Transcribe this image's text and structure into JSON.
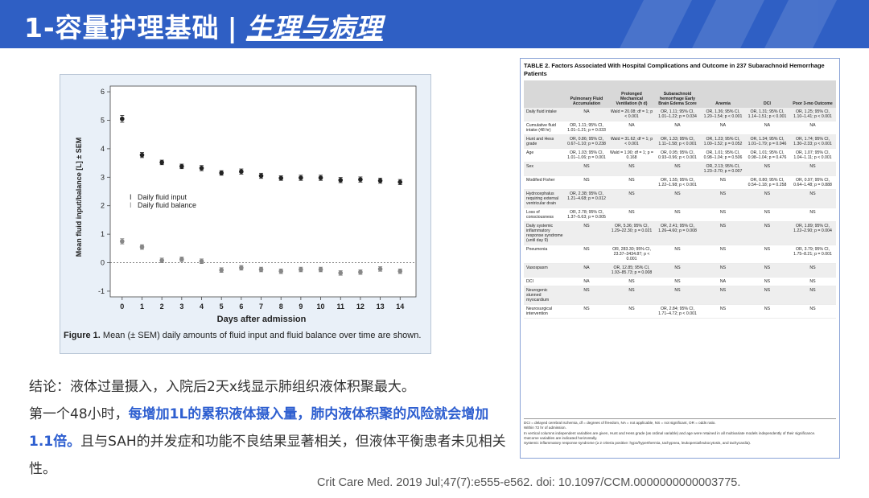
{
  "header": {
    "title_main": "1-容量护理基础",
    "separator": "|",
    "title_sub": "生理与病理",
    "bg_color": "#2f5fc4"
  },
  "figure1": {
    "ylabel": "Mean fluid input/balance [L] ± SEM",
    "xlabel": "Days after admission",
    "legend_input": "Daily fluid input",
    "legend_balance": "Daily fluid balance",
    "caption_label": "Figure 1.",
    "caption_text": " Mean (± SEM) daily amounts of fluid input and fluid balance over time are shown."
  },
  "chart_data": {
    "type": "scatter",
    "x": [
      0,
      1,
      2,
      3,
      4,
      5,
      6,
      7,
      8,
      9,
      10,
      11,
      12,
      13,
      14
    ],
    "series": [
      {
        "name": "Daily fluid input",
        "values": [
          5.05,
          3.78,
          3.52,
          3.38,
          3.32,
          3.15,
          3.2,
          3.05,
          2.97,
          2.98,
          2.98,
          2.9,
          2.92,
          2.88,
          2.83
        ],
        "errors": [
          0.12,
          0.09,
          0.08,
          0.08,
          0.09,
          0.08,
          0.09,
          0.09,
          0.08,
          0.09,
          0.09,
          0.09,
          0.09,
          0.09,
          0.09
        ]
      },
      {
        "name": "Daily fluid balance",
        "values": [
          0.75,
          0.55,
          0.08,
          0.12,
          0.05,
          -0.26,
          -0.18,
          -0.24,
          -0.3,
          -0.24,
          -0.24,
          -0.36,
          -0.33,
          -0.22,
          -0.3
        ],
        "errors": [
          0.09,
          0.08,
          0.08,
          0.08,
          0.08,
          0.08,
          0.08,
          0.08,
          0.08,
          0.08,
          0.08,
          0.08,
          0.08,
          0.08,
          0.08
        ]
      }
    ],
    "x_ticks": [
      "0",
      "1",
      "2",
      "3",
      "4",
      "5",
      "6",
      "7",
      "8",
      "9",
      "10",
      "11",
      "12",
      "13",
      "14"
    ],
    "y_ticks": [
      "-1",
      "0",
      "1",
      "2",
      "3",
      "4",
      "5",
      "6"
    ],
    "xlim": [
      -0.6,
      14.8
    ],
    "ylim": [
      -1.2,
      6.2
    ],
    "xlabel": "Days after admission",
    "ylabel": "Mean fluid input/balance [L] ± SEM",
    "grid": false,
    "reference_line_y": 0,
    "legend_position": "center"
  },
  "table2": {
    "title": "TABLE 2. Factors Associated With Hospital Complications and Outcome in 237 Subarachnoid Hemorrhage Patients",
    "columns": [
      "",
      "Pulmonary Fluid Accumulation",
      "Prolonged Mechanical Ventilation (h d)",
      "Subarachnoid hemorrhage Early Brain Edema Score",
      "Anemia",
      "DCI",
      "Poor 3-mo Outcome"
    ],
    "rows": [
      [
        "Daily fluid intake",
        "NA",
        "Wald = 20.08; df = 1; p < 0.001",
        "OR, 1.11; 95% CI, 1.01–1.22; p = 0.034",
        "OR, 1.36; 95% CI, 1.20–1.54; p < 0.001",
        "OR, 1.31; 95% CI, 1.14–1.51; p < 0.001",
        "OR, 1.25; 95% CI, 1.10–1.41; p < 0.001"
      ],
      [
        "Cumulative fluid intake (48 hr)",
        "OR, 1.11; 95% CI, 1.01–1.21; p = 0.033",
        "NA",
        "NA",
        "NA",
        "NA",
        "NA"
      ],
      [
        "Hunt and Hess grade",
        "OR, 0.86; 95% CI, 0.67–1.10; p = 0.238",
        "Wald = 31.62; df = 1; p < 0.001",
        "OR, 1.33; 95% CI, 1.11–1.58; p < 0.001",
        "OR, 1.23; 95% CI, 1.00–1.52; p = 0.052",
        "OR, 1.34; 95% CI, 1.01–1.79; p = 0.046",
        "OR, 1.74; 95% CI, 1.30–2.33; p < 0.001"
      ],
      [
        "Age",
        "OR, 1.03; 95% CI, 1.01–1.06; p = 0.001",
        "Wald = 1.90; df = 1; p = 0.168",
        "OR, 0.95; 95% CI, 0.93–0.96; p < 0.001",
        "OR, 1.01; 95% CI, 0.98–1.04; p = 0.506",
        "OR, 1.01; 95% CI, 0.98–1.04; p = 0.476",
        "OR, 1.07; 95% CI, 1.04–1.11; p < 0.001"
      ],
      [
        "Sex",
        "NS",
        "NS",
        "NS",
        "OR, 2.13; 95% CI, 1.23–3.70; p = 0.007",
        "NS",
        "NS"
      ],
      [
        "Modified Fisher",
        "NS",
        "NS",
        "OR, 1.55; 95% CI, 1.22–1.98; p < 0.001",
        "NS",
        "OR, 0.80; 95% CI, 0.54–1.18; p = 0.258",
        "OR, 0.97; 95% CI, 0.64–1.48; p = 0.888"
      ],
      [
        "Hydrocephalus requiring external ventricular drain",
        "OR, 2.38; 95% CI, 1.21–4.68; p = 0.012",
        "NS",
        "NS",
        "NS",
        "NS",
        "NS"
      ],
      [
        "Loss of consciousness",
        "OR, 2.78; 95% CI, 1.37–5.63; p = 0.005",
        "NS",
        "NS",
        "NS",
        "NS",
        "NS"
      ],
      [
        "Daily systemic inflammatory response syndrome (until day 9)",
        "NS",
        "OR, 5.36; 95% CI, 1.29–22.30; p = 0.021",
        "OR, 2.41; 95% CI, 1.26–4.60; p = 0.008",
        "NS",
        "NS",
        "OR, 1.89; 95% CI, 1.22–2.90; p = 0.004"
      ],
      [
        "Pneumonia",
        "NS",
        "OR, 283.30; 95% CI, 23.37–3434.87; p < 0.001",
        "NS",
        "NS",
        "NS",
        "OR, 3.79; 95% CI, 1.75–8.21; p = 0.001"
      ],
      [
        "Vasospasm",
        "NA",
        "OR, 12.85; 95% CI, 1.93–85.73; p = 0.008",
        "NS",
        "NS",
        "NS",
        "NS"
      ],
      [
        "DCI",
        "NA",
        "NS",
        "NS",
        "NA",
        "NS",
        "NS"
      ],
      [
        "Neurogenic stunned myocardium",
        "NS",
        "NS",
        "NS",
        "NS",
        "NS",
        "NS"
      ],
      [
        "Neurosurgical intervention",
        "NS",
        "NS",
        "OR, 2.84; 95% CI, 1.71–4.72; p < 0.001",
        "NS",
        "NS",
        "NS"
      ]
    ],
    "notes": [
      "DCI = delayed cerebral ischemia, df = degrees of freedom, NA = not applicable, NS = not significant, OR = odds ratio.",
      "Within 72 hr of admission.",
      "In vertical columns independent variables are given, Hunt and Hess grade (as ordinal variable) and age were retained in all multivariate models independently of their significance.",
      "Outcome variables are indicated horizontally.",
      "Systemic inflammatory response syndrome (≥ 2 criteria positive: hypo/hyperthermia, tachypnea, leukopenia/leukocytosis, and tachycardia)."
    ]
  },
  "conclusion": {
    "p1": "结论：液体过量摄入，入院后2天x线显示肺组织液体积聚最大。",
    "p2_pre": "第一个48小时，",
    "p2_highlight": "每增加1L的累积液体摄入量，肺内液体积聚的风险就会增加1.1倍。",
    "p2_post": "且与SAH的并发症和功能不良结果显著相关，但液体平衡患者未见相关性。",
    "highlight_color": "#2e5fd0"
  },
  "citation": "Crit Care Med. 2019 Jul;47(7):e555-e562. doi: 10.1097/CCM.0000000000003775."
}
